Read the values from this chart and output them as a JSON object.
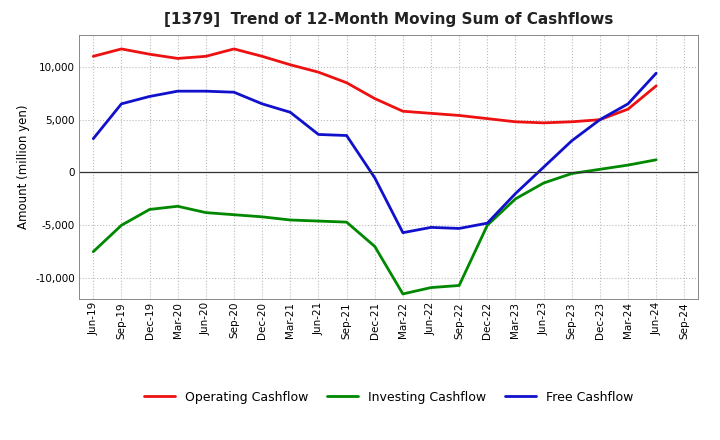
{
  "title": "[1379]  Trend of 12-Month Moving Sum of Cashflows",
  "ylabel": "Amount (million yen)",
  "ylim": [
    -12000,
    13000
  ],
  "yticks": [
    -10000,
    -5000,
    0,
    5000,
    10000
  ],
  "x_labels": [
    "Jun-19",
    "Sep-19",
    "Dec-19",
    "Mar-20",
    "Jun-20",
    "Sep-20",
    "Dec-20",
    "Mar-21",
    "Jun-21",
    "Sep-21",
    "Dec-21",
    "Mar-22",
    "Jun-22",
    "Sep-22",
    "Dec-22",
    "Mar-23",
    "Jun-23",
    "Sep-23",
    "Dec-23",
    "Mar-24",
    "Jun-24",
    "Sep-24"
  ],
  "operating": [
    11000,
    11700,
    11200,
    10800,
    11000,
    11700,
    11000,
    10200,
    9500,
    8500,
    7000,
    5800,
    5600,
    5400,
    5100,
    4800,
    4700,
    4800,
    5000,
    6000,
    8200,
    null
  ],
  "investing": [
    -7500,
    -5000,
    -3500,
    -3200,
    -3800,
    -4000,
    -4200,
    -4500,
    -4600,
    -4700,
    -7000,
    -11500,
    -10900,
    -10700,
    -5000,
    -2500,
    -1000,
    -100,
    300,
    700,
    1200,
    null
  ],
  "free": [
    3200,
    6500,
    7200,
    7700,
    7700,
    7600,
    6500,
    5700,
    3600,
    3500,
    -500,
    -5700,
    -5200,
    -5300,
    -4800,
    -2000,
    500,
    3000,
    5000,
    6500,
    9400,
    null
  ],
  "operating_color": "#EE1111",
  "investing_color": "#008800",
  "free_color": "#1111CC",
  "bg_color": "#FFFFFF",
  "plot_bg_color": "#FFFFFF",
  "grid_color": "#BBBBBB",
  "linewidth": 2.0,
  "title_fontsize": 11,
  "axis_fontsize": 8.5,
  "tick_fontsize": 7.5,
  "legend_fontsize": 9
}
